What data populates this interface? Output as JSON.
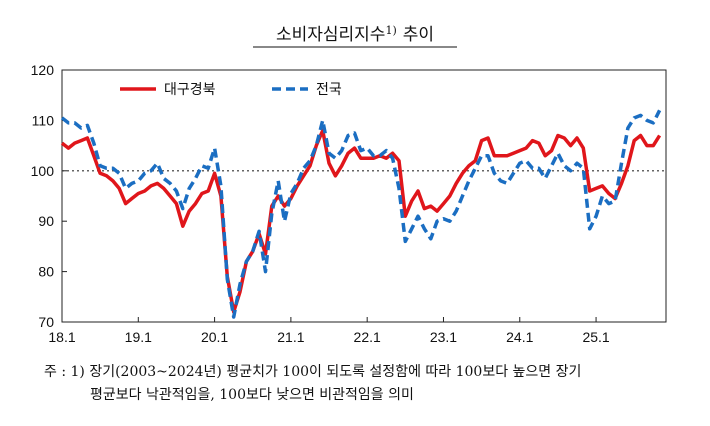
{
  "chart_data": {
    "type": "line",
    "title": "소비자심리지수",
    "title_note_mark": "1)",
    "title_suffix": "추이",
    "categories": [
      "18.1",
      null,
      null,
      null,
      null,
      null,
      null,
      null,
      null,
      null,
      null,
      null,
      "19.1",
      null,
      null,
      null,
      null,
      null,
      null,
      null,
      null,
      null,
      null,
      null,
      "20.1",
      null,
      null,
      null,
      null,
      null,
      null,
      null,
      null,
      null,
      null,
      null,
      "21.1",
      null,
      null,
      null,
      null,
      null,
      null,
      null,
      null,
      null,
      null,
      null,
      "22.1",
      null,
      null,
      null,
      null,
      null,
      null,
      null,
      null,
      null,
      null,
      null,
      "23.1",
      null,
      null,
      null,
      null,
      null,
      null,
      null,
      null,
      null,
      null,
      null,
      "24.1",
      null,
      null,
      null,
      null,
      null,
      null,
      null,
      null,
      null,
      null,
      null,
      "25.1",
      null,
      null,
      null,
      null,
      null,
      null,
      null,
      null,
      null,
      null
    ],
    "series": [
      {
        "name": "대구경북",
        "color": "#e0161b",
        "dash": false,
        "values": [
          105.5,
          104.5,
          105.5,
          106,
          106.5,
          103,
          99.5,
          99,
          98,
          96.5,
          93.5,
          94.5,
          95.5,
          96,
          97,
          97.5,
          96.5,
          95,
          93.5,
          89,
          92,
          93.5,
          95.5,
          96,
          99.5,
          95,
          79,
          72,
          76,
          82,
          84,
          87.5,
          83.5,
          93,
          95,
          93,
          94.5,
          97,
          99,
          101,
          105,
          108,
          101.5,
          99,
          101,
          103.5,
          104.5,
          102.5,
          102.5,
          102.5,
          103,
          102.5,
          103.5,
          102,
          91,
          94,
          96,
          92.5,
          93,
          92,
          93.5,
          95,
          97.5,
          99.5,
          101,
          102,
          106,
          106.5,
          103,
          103,
          103,
          103.5,
          104,
          104.5,
          106,
          105.5,
          103,
          104,
          107,
          106.5,
          105,
          106.5,
          104.5,
          96,
          96.5,
          97,
          95.5,
          94.5,
          97.5,
          101,
          106,
          107,
          105,
          105,
          107
        ]
      },
      {
        "name": "전국",
        "color": "#1b6ec2",
        "dash": true,
        "values": [
          110.5,
          109.5,
          109.5,
          108.5,
          109,
          105.5,
          101,
          100.5,
          100.5,
          99.5,
          96.5,
          97.5,
          98,
          99.5,
          100,
          101.5,
          98.5,
          97.5,
          96,
          92.5,
          96.5,
          98.5,
          101,
          100.5,
          104.5,
          97,
          78.5,
          71,
          77.5,
          82,
          84,
          88,
          80,
          91.5,
          98,
          90,
          95.5,
          97.5,
          100.5,
          102,
          105,
          110,
          103.5,
          102.5,
          104,
          107,
          107.5,
          104,
          104.5,
          103,
          103,
          104,
          102.5,
          96.5,
          86,
          88.5,
          91,
          88.5,
          86.5,
          90,
          90.5,
          90,
          92,
          95,
          98,
          100.5,
          103,
          103,
          99.5,
          98,
          97.5,
          99.5,
          101.5,
          102,
          100.5,
          100.5,
          98.5,
          101,
          103.5,
          101,
          100,
          101.5,
          100.5,
          88.5,
          91,
          95,
          93.5,
          94,
          101.5,
          108.5,
          110.5,
          111,
          110,
          109.5,
          112
        ]
      }
    ],
    "ylim": [
      70,
      120
    ],
    "yticks": [
      70,
      80,
      90,
      100,
      110,
      120
    ],
    "reference_line": 100,
    "grid": false,
    "legend": "top-left",
    "note_lines": [
      "주 : 1) 장기(2003~2024년) 평균치가 100이 되도록 설정함에 따라 100보다 높으면 장기",
      "평균보다 낙관적임을, 100보다 낮으면 비관적임을 의미"
    ]
  }
}
